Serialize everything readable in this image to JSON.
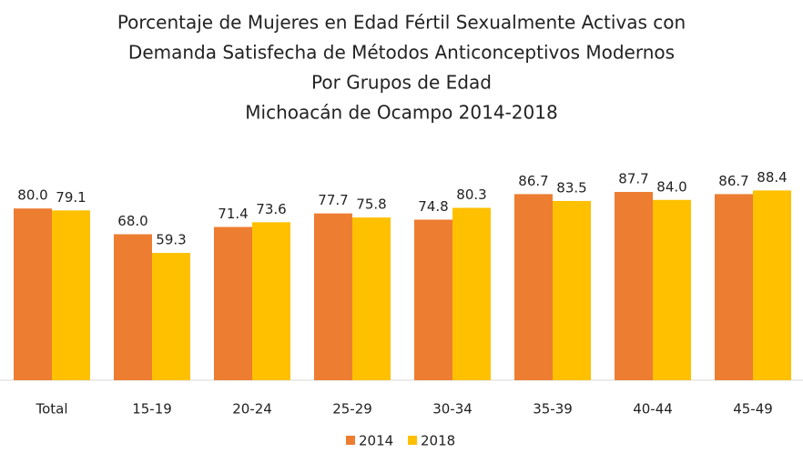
{
  "chart_data": {
    "type": "bar",
    "title": [
      "Porcentaje de Mujeres en Edad Fértil Sexualmente Activas con",
      "Demanda Satisfecha de Métodos Anticonceptivos Modernos",
      "Por Grupos de Edad",
      "Michoacán de Ocampo 2014-2018"
    ],
    "categories": [
      "Total",
      "15-19",
      "20-24",
      "25-29",
      "30-34",
      "35-39",
      "40-44",
      "45-49"
    ],
    "series": [
      {
        "name": "2014",
        "color": "#ed7d31",
        "values": [
          80.0,
          68.0,
          71.4,
          77.7,
          74.8,
          86.7,
          87.7,
          86.7
        ],
        "value_labels": [
          "80.0",
          "68.0",
          "71.4",
          "77.7",
          "74.8",
          "86.7",
          "87.7",
          "86.7"
        ]
      },
      {
        "name": "2018",
        "color": "#ffc000",
        "values": [
          79.1,
          59.3,
          73.6,
          75.8,
          80.3,
          83.5,
          84.0,
          88.4
        ],
        "value_labels": [
          "79.1",
          "59.3",
          "73.6",
          "75.8",
          "80.3",
          "83.5",
          "84.0",
          "88.4"
        ]
      }
    ],
    "ylim": [
      0,
      100
    ],
    "legend": "bottom"
  }
}
